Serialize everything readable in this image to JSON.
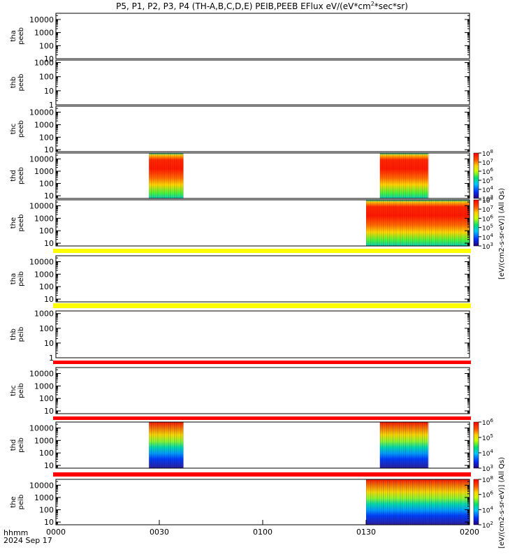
{
  "title": "P5, P1, P2, P3, P4 (TH-A,B,C,D,E) PEIB,PEEB EFlux eV/(eV*cm",
  "title_sup": "2",
  "title_end": "*sec*sr)",
  "date_label": "2024 Sep 17",
  "time_label": "hhmm",
  "colorbar_label_1": "[eV/(cm2-s-sr-eV)] (All Qs)",
  "colorbar_label_2": "[eV/(cm2-s-sr-eV)] (All Qs)",
  "colors": {
    "yellow_band": "#ffff00",
    "red_band": "#ff0000"
  },
  "chart_data": {
    "type": "heatmap",
    "x_ticks": [
      "0000",
      "0030",
      "0100",
      "0130",
      "0200"
    ],
    "x_range_hours": [
      0,
      2
    ],
    "panels": [
      {
        "probe": "tha",
        "product": "peeb",
        "ylabel": "tha\npeeb",
        "yticks": [
          "10000",
          "1000",
          "100",
          "10"
        ],
        "ymin": 10,
        "ymax": 30000,
        "data": [],
        "band_after": null
      },
      {
        "probe": "thb",
        "product": "peeb",
        "ylabel": "thb\npeeb",
        "yticks": [
          "1000",
          "100",
          "10",
          "1"
        ],
        "ymin": 1,
        "ymax": 1500,
        "data": [],
        "band_after": null
      },
      {
        "probe": "thc",
        "product": "peeb",
        "ylabel": "thc\npeeb",
        "yticks": [
          "10000",
          "1000",
          "100",
          "10"
        ],
        "ymin": 7,
        "ymax": 30000,
        "data": [],
        "band_after": null
      },
      {
        "probe": "thd",
        "product": "peeb",
        "ylabel": "thd\npeeb",
        "yticks": [
          "10000",
          "1000",
          "100",
          "10"
        ],
        "ymin": 6,
        "ymax": 30000,
        "data": [
          {
            "start_hhmm": "0027",
            "end_hhmm": "0037",
            "level": "high"
          },
          {
            "start_hhmm": "0134",
            "end_hhmm": "0148",
            "level": "high"
          }
        ],
        "band_after": null
      },
      {
        "probe": "the",
        "product": "peeb",
        "ylabel": "the\npeeb",
        "yticks": [
          "10000",
          "1000",
          "100",
          "10"
        ],
        "ymin": 6,
        "ymax": 30000,
        "data": [
          {
            "start_hhmm": "0130",
            "end_hhmm": "0200",
            "level": "high"
          }
        ],
        "band_after": "yellow"
      },
      {
        "probe": "tha",
        "product": "peib",
        "ylabel": "tha\npeib",
        "yticks": [
          "10000",
          "1000",
          "100",
          "10"
        ],
        "ymin": 6,
        "ymax": 30000,
        "data": [],
        "band_after": "yellow"
      },
      {
        "probe": "thb",
        "product": "peib",
        "ylabel": "thb\npeib",
        "yticks": [
          "1000",
          "100",
          "10",
          "1"
        ],
        "ymin": 1,
        "ymax": 1500,
        "data": [],
        "band_after": "red"
      },
      {
        "probe": "thc",
        "product": "peib",
        "ylabel": "thc\npeib",
        "yticks": [
          "10000",
          "1000",
          "100",
          "10"
        ],
        "ymin": 6,
        "ymax": 30000,
        "data": [],
        "band_after": "red"
      },
      {
        "probe": "thd",
        "product": "peib",
        "ylabel": "thd\npeib",
        "yticks": [
          "10000",
          "1000",
          "100",
          "10"
        ],
        "ymin": 6,
        "ymax": 30000,
        "data": [
          {
            "start_hhmm": "0027",
            "end_hhmm": "0037",
            "level": "ion"
          },
          {
            "start_hhmm": "0134",
            "end_hhmm": "0148",
            "level": "ion"
          }
        ],
        "band_after": "red"
      },
      {
        "probe": "the",
        "product": "peib",
        "ylabel": "the\npeib",
        "yticks": [
          "10000",
          "1000",
          "100",
          "10"
        ],
        "ymin": 6,
        "ymax": 30000,
        "data": [
          {
            "start_hhmm": "0130",
            "end_hhmm": "0200",
            "level": "ion"
          }
        ],
        "band_after": null
      }
    ],
    "colorbars": [
      {
        "ticks": [
          "10^8",
          "10^7",
          "10^6",
          "10^5",
          "10^4",
          "10^3"
        ]
      },
      {
        "ticks": [
          "10^8",
          "10^7",
          "10^6",
          "10^5",
          "10^4",
          "10^3"
        ]
      },
      {
        "ticks": [
          "10^6",
          "10^5",
          "10^4",
          "10^3"
        ]
      },
      {
        "ticks": [
          "10^8",
          "10^6",
          "10^4",
          "10^2"
        ]
      }
    ]
  }
}
